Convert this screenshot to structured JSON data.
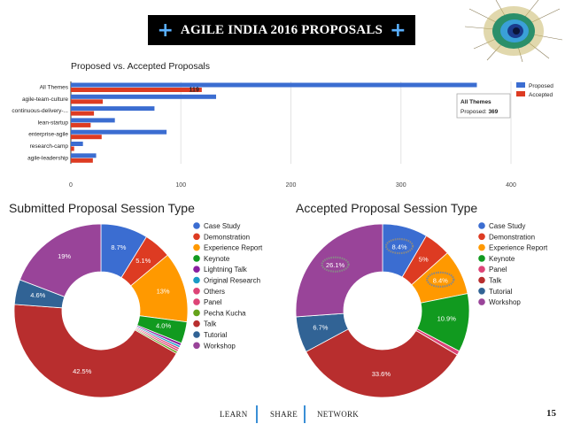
{
  "title": "AGILE INDIA 2016 PROPOSALS",
  "title_plus": "+",
  "colors": {
    "proposed": "#3b6dd1",
    "accepted": "#dd3b22",
    "case_study": "#3b6dd1",
    "demonstration": "#dd3b22",
    "experience_report": "#ff9900",
    "keynote": "#119a1f",
    "lightning_talk": "#8a1fa0",
    "original_research": "#1a9bc6",
    "others": "#dd4477",
    "panel": "#dd4477",
    "pecha_kucha": "#65a31b",
    "talk": "#b82e2e",
    "tutorial": "#316395",
    "workshop": "#994499"
  },
  "chart_data": [
    {
      "type": "bar",
      "orientation": "horizontal",
      "title": "Proposed vs. Accepted Proposals",
      "categories": [
        "All Themes",
        "agile-team-culture",
        "continuous-delivery-...",
        "lean-startup",
        "enterprise-agile",
        "research-camp",
        "agile-leadership"
      ],
      "series": [
        {
          "name": "Proposed",
          "values": [
            369,
            132,
            76,
            40,
            87,
            11,
            23
          ]
        },
        {
          "name": "Accepted",
          "values": [
            119,
            29,
            21,
            18,
            28,
            3,
            20
          ]
        }
      ],
      "data_labels": {
        "All Themes.Accepted": "119"
      },
      "xlim": [
        0,
        400
      ],
      "xticks": [
        0,
        100,
        200,
        300,
        400
      ],
      "legend": "right",
      "tooltip": {
        "title": "All Themes",
        "label": "Proposed:",
        "value": "369"
      }
    },
    {
      "type": "pie",
      "donut": true,
      "title": "Submitted Proposal Session Type",
      "slices": [
        {
          "key": "case_study",
          "label": "Case Study",
          "value": 8.7,
          "text": "8.7%"
        },
        {
          "key": "demonstration",
          "label": "Demonstration",
          "value": 5.1,
          "text": "5.1%"
        },
        {
          "key": "experience_report",
          "label": "Experience Report",
          "value": 13,
          "text": "13%"
        },
        {
          "key": "keynote",
          "label": "Keynote",
          "value": 4.0,
          "text": "4.0%"
        },
        {
          "key": "lightning_talk",
          "label": "Lightning Talk",
          "value": 0.5,
          "text": ""
        },
        {
          "key": "original_research",
          "label": "Original Research",
          "value": 0.4,
          "text": ""
        },
        {
          "key": "others",
          "label": "Others",
          "value": 0.4,
          "text": ""
        },
        {
          "key": "panel",
          "label": "Panel",
          "value": 0.4,
          "text": ""
        },
        {
          "key": "pecha_kucha",
          "label": "Pecha Kucha",
          "value": 0.4,
          "text": ""
        },
        {
          "key": "talk",
          "label": "Talk",
          "value": 42.5,
          "text": "42.5%"
        },
        {
          "key": "tutorial",
          "label": "Tutorial",
          "value": 4.6,
          "text": "4.6%"
        },
        {
          "key": "workshop",
          "label": "Workshop",
          "value": 19,
          "text": "19%"
        }
      ]
    },
    {
      "type": "pie",
      "donut": true,
      "title": "Accepted Proposal Session Type",
      "slices": [
        {
          "key": "case_study",
          "label": "Case Study",
          "value": 8.4,
          "text": "8.4%",
          "circled": true
        },
        {
          "key": "demonstration",
          "label": "Demonstration",
          "value": 5,
          "text": "5%"
        },
        {
          "key": "experience_report",
          "label": "Experience Report",
          "value": 8.4,
          "text": "8.4%",
          "circled": true
        },
        {
          "key": "keynote",
          "label": "Keynote",
          "value": 10.9,
          "text": "10.9%"
        },
        {
          "key": "panel",
          "label": "Panel",
          "value": 0.8,
          "text": ""
        },
        {
          "key": "talk",
          "label": "Talk",
          "value": 33.6,
          "text": "33.6%"
        },
        {
          "key": "tutorial",
          "label": "Tutorial",
          "value": 6.7,
          "text": "6.7%"
        },
        {
          "key": "workshop",
          "label": "Workshop",
          "value": 26.1,
          "text": "26.1%",
          "circled": true
        }
      ]
    }
  ],
  "footer": {
    "items": [
      "LEARN",
      "SHARE",
      "NETWORK"
    ],
    "page": "15"
  }
}
